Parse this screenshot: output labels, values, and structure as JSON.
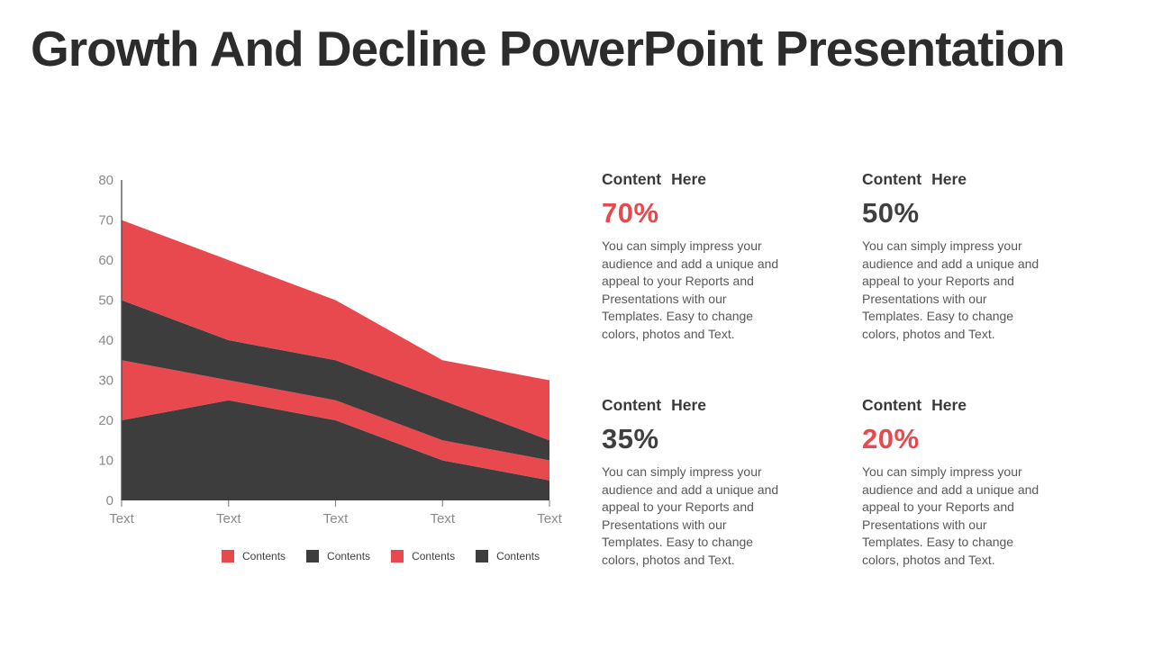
{
  "title": "Growth And Decline PowerPoint Presentation",
  "colors": {
    "red": "#e8494f",
    "dark": "#3d3d3d",
    "axis_line": "#4a4a4a",
    "tick_text": "#8a8a8a",
    "legend_text": "#3f3f3f"
  },
  "chart_data": {
    "type": "area",
    "stacked": true,
    "title": "",
    "xlabel": "",
    "ylabel": "",
    "x_labels": [
      "Text",
      "Text",
      "Text",
      "Text",
      "Text"
    ],
    "ylim": [
      0,
      80
    ],
    "ytick_step": 10,
    "grid": false,
    "legend_position": "bottom",
    "series": [
      {
        "name": "Contents",
        "color": "#3d3d3d",
        "values": [
          20,
          25,
          20,
          10,
          5
        ]
      },
      {
        "name": "Contents",
        "color": "#e8494f",
        "values": [
          15,
          5,
          5,
          5,
          5
        ]
      },
      {
        "name": "Contents",
        "color": "#3d3d3d",
        "values": [
          15,
          10,
          10,
          10,
          5
        ]
      },
      {
        "name": "Contents",
        "color": "#e8494f",
        "values": [
          20,
          20,
          15,
          10,
          15
        ]
      }
    ],
    "cumulative_boundaries": {
      "band1_top": [
        20,
        25,
        20,
        10,
        5
      ],
      "band2_top": [
        35,
        30,
        25,
        15,
        10
      ],
      "band3_top": [
        50,
        40,
        35,
        25,
        15
      ],
      "band4_top": [
        70,
        60,
        50,
        35,
        30
      ]
    },
    "legend": [
      {
        "label": "Contents",
        "color": "#e8494f"
      },
      {
        "label": "Contents",
        "color": "#3d3d3d"
      },
      {
        "label": "Contents",
        "color": "#e8494f"
      },
      {
        "label": "Contents",
        "color": "#3d3d3d"
      }
    ]
  },
  "stats": [
    {
      "heading": "Content Here",
      "value": "70%",
      "value_color": "#e8494f",
      "body": "You can simply impress your audience and add a unique and appeal to your Reports and Presentations with our Templates. Easy to change colors, photos and Text."
    },
    {
      "heading": "Content Here",
      "value": "50%",
      "value_color": "#3f3f3f",
      "body": "You can simply impress your audience and add a unique and appeal to your Reports and Presentations with our Templates. Easy to change colors, photos and Text."
    },
    {
      "heading": "Content Here",
      "value": "35%",
      "value_color": "#3f3f3f",
      "body": "You can simply impress your audience and add a unique and appeal to your Reports and Presentations with our Templates. Easy to change colors, photos and Text."
    },
    {
      "heading": "Content Here",
      "value": "20%",
      "value_color": "#e8494f",
      "body": "You can simply impress your audience and add a unique and appeal to your Reports and Presentations with our Templates. Easy to change colors, photos and Text."
    }
  ]
}
